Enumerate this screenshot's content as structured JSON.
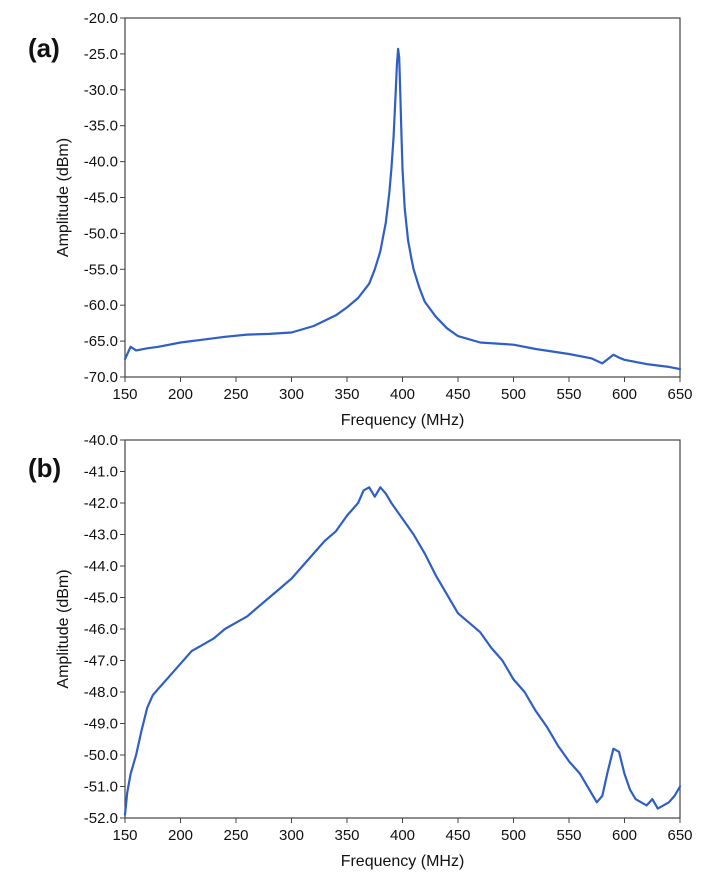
{
  "chart_data": [
    {
      "type": "line",
      "panel_label": "(a)",
      "xlabel": "Frequency (MHz)",
      "ylabel": "Amplitude (dBm)",
      "xlim": [
        150,
        650
      ],
      "ylim": [
        -70,
        -20
      ],
      "x_ticks": [
        150,
        200,
        250,
        300,
        350,
        400,
        450,
        500,
        550,
        600,
        650
      ],
      "x_tick_labels": [
        "150",
        "200",
        "250",
        "300",
        "350",
        "400",
        "450",
        "500",
        "550",
        "600",
        "650"
      ],
      "y_ticks": [
        -20,
        -25,
        -30,
        -35,
        -40,
        -45,
        -50,
        -55,
        -60,
        -65,
        -70
      ],
      "y_tick_labels": [
        "-20.0",
        "-25.0",
        "-30.0",
        "-35.0",
        "-40.0",
        "-45.0",
        "-50.0",
        "-55.0",
        "-60.0",
        "-65.0",
        "-70.0"
      ],
      "grid": false,
      "series": [
        {
          "color": "#2f5fc4",
          "x": [
            150,
            155,
            160,
            170,
            180,
            200,
            220,
            240,
            260,
            280,
            300,
            320,
            340,
            350,
            360,
            370,
            375,
            380,
            385,
            388,
            390,
            392,
            394,
            395,
            396,
            397,
            398,
            399,
            400,
            402,
            405,
            408,
            410,
            415,
            420,
            430,
            440,
            450,
            470,
            500,
            520,
            550,
            570,
            580,
            590,
            595,
            600,
            620,
            640,
            650
          ],
          "y": [
            -67.5,
            -65.8,
            -66.3,
            -66.0,
            -65.8,
            -65.2,
            -64.8,
            -64.4,
            -64.1,
            -64.0,
            -63.8,
            -62.9,
            -61.4,
            -60.3,
            -59.0,
            -57.0,
            -55.0,
            -52.5,
            -48.5,
            -44.5,
            -41.0,
            -36.5,
            -30.0,
            -26.5,
            -24.3,
            -25.5,
            -30.5,
            -36.0,
            -41.0,
            -46.5,
            -51.0,
            -53.5,
            -55.0,
            -57.5,
            -59.5,
            -61.6,
            -63.2,
            -64.3,
            -65.2,
            -65.5,
            -66.1,
            -66.8,
            -67.4,
            -68.1,
            -66.9,
            -67.3,
            -67.6,
            -68.2,
            -68.6,
            -68.9
          ]
        }
      ]
    },
    {
      "type": "line",
      "panel_label": "(b)",
      "xlabel": "Frequency (MHz)",
      "ylabel": "Amplitude (dBm)",
      "xlim": [
        150,
        650
      ],
      "ylim": [
        -52,
        -40
      ],
      "x_ticks": [
        150,
        200,
        250,
        300,
        350,
        400,
        450,
        500,
        550,
        600,
        650
      ],
      "x_tick_labels": [
        "150",
        "200",
        "250",
        "300",
        "350",
        "400",
        "450",
        "500",
        "550",
        "600",
        "650"
      ],
      "y_ticks": [
        -40,
        -41,
        -42,
        -43,
        -44,
        -45,
        -46,
        -47,
        -48,
        -49,
        -50,
        -51,
        -52
      ],
      "y_tick_labels": [
        "-40.0",
        "-41.0",
        "-42.0",
        "-43.0",
        "-44.0",
        "-45.0",
        "-46.0",
        "-47.0",
        "-48.0",
        "-49.0",
        "-50.0",
        "-51.0",
        "-52.0"
      ],
      "grid": false,
      "series": [
        {
          "color": "#2f5fc4",
          "x": [
            150,
            152,
            155,
            160,
            165,
            170,
            175,
            180,
            190,
            200,
            210,
            220,
            230,
            240,
            250,
            260,
            270,
            280,
            290,
            300,
            310,
            320,
            330,
            340,
            350,
            360,
            365,
            370,
            375,
            380,
            385,
            390,
            400,
            410,
            420,
            430,
            440,
            450,
            460,
            470,
            480,
            490,
            500,
            510,
            520,
            530,
            540,
            550,
            560,
            570,
            575,
            580,
            585,
            590,
            595,
            600,
            605,
            610,
            615,
            620,
            625,
            630,
            635,
            640,
            645,
            650
          ],
          "y": [
            -51.9,
            -51.2,
            -50.6,
            -50.0,
            -49.2,
            -48.5,
            -48.1,
            -47.9,
            -47.5,
            -47.1,
            -46.7,
            -46.5,
            -46.3,
            -46.0,
            -45.8,
            -45.6,
            -45.3,
            -45.0,
            -44.7,
            -44.4,
            -44.0,
            -43.6,
            -43.2,
            -42.9,
            -42.4,
            -42.0,
            -41.6,
            -41.5,
            -41.8,
            -41.5,
            -41.7,
            -42.0,
            -42.5,
            -43.0,
            -43.6,
            -44.3,
            -44.9,
            -45.5,
            -45.8,
            -46.1,
            -46.6,
            -47.0,
            -47.6,
            -48.0,
            -48.6,
            -49.1,
            -49.7,
            -50.2,
            -50.6,
            -51.2,
            -51.5,
            -51.3,
            -50.5,
            -49.8,
            -49.9,
            -50.6,
            -51.1,
            -51.4,
            -51.5,
            -51.6,
            -51.4,
            -51.7,
            -51.6,
            -51.5,
            -51.3,
            -51.0
          ]
        }
      ]
    }
  ]
}
